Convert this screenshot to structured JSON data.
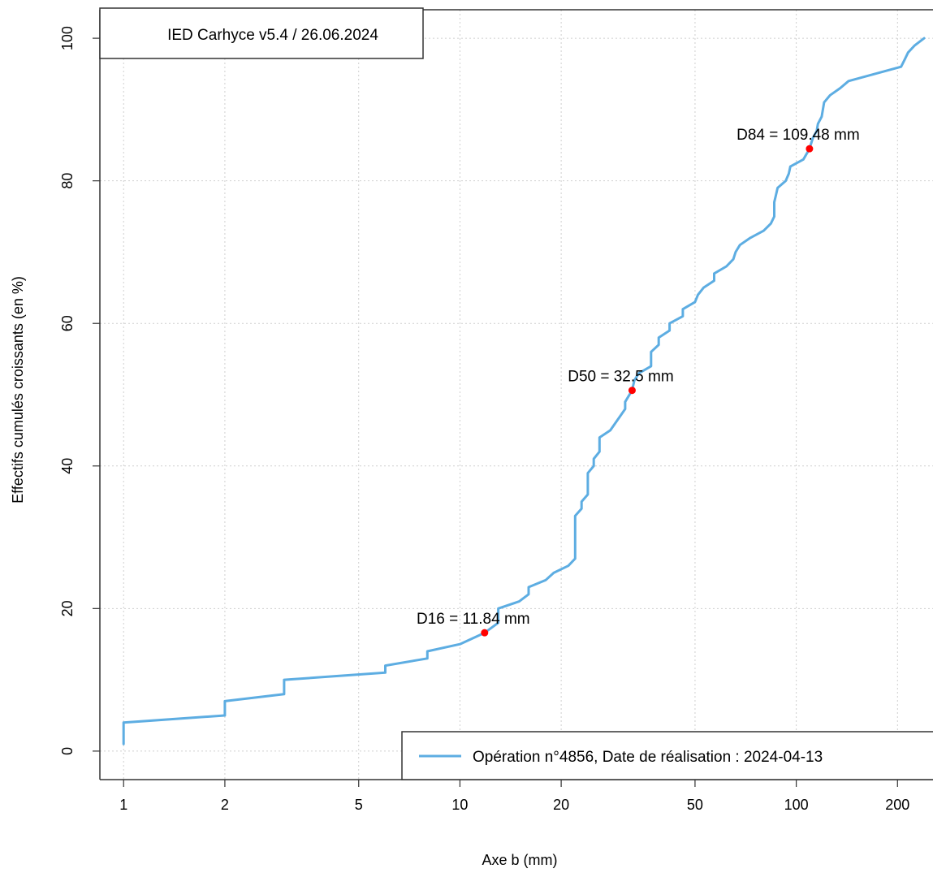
{
  "chart_data": {
    "type": "line",
    "title": "",
    "xlabel": "Axe b (mm)",
    "ylabel": "Effectifs cumulés croissants (en %)",
    "x_scale": "log",
    "xlim": [
      0.85,
      255
    ],
    "ylim": [
      -4,
      104
    ],
    "xticks": [
      1,
      2,
      5,
      10,
      20,
      50,
      100,
      200
    ],
    "yticks": [
      0,
      20,
      40,
      60,
      80,
      100
    ],
    "grid": true,
    "version_label": "IED Carhyce v5.4 / 26.06.2024",
    "legend": {
      "placement": "bottom-right",
      "entries": [
        "Opération n°4856, Date de réalisation : 2024-04-13"
      ]
    },
    "series": [
      {
        "name": "Opération n°4856, Date de réalisation : 2024-04-13",
        "color": "#5DADE2",
        "points": [
          [
            1,
            1
          ],
          [
            1,
            4
          ],
          [
            2,
            5
          ],
          [
            2,
            7
          ],
          [
            3,
            8
          ],
          [
            3,
            10
          ],
          [
            6,
            11
          ],
          [
            6,
            12
          ],
          [
            8,
            13
          ],
          [
            8,
            14
          ],
          [
            10,
            15
          ],
          [
            11.84,
            16.6
          ],
          [
            13,
            18
          ],
          [
            13,
            20
          ],
          [
            15,
            21
          ],
          [
            16,
            22
          ],
          [
            16,
            23
          ],
          [
            18,
            24
          ],
          [
            19,
            25
          ],
          [
            21,
            26
          ],
          [
            22,
            27
          ],
          [
            22,
            33
          ],
          [
            23,
            34
          ],
          [
            23,
            35
          ],
          [
            24,
            36
          ],
          [
            24,
            39
          ],
          [
            25,
            40
          ],
          [
            25,
            41
          ],
          [
            26,
            42
          ],
          [
            26,
            44
          ],
          [
            28,
            45
          ],
          [
            31,
            48
          ],
          [
            31,
            49
          ],
          [
            32.5,
            50.6
          ],
          [
            33,
            52
          ],
          [
            34,
            53
          ],
          [
            37,
            54
          ],
          [
            37,
            56
          ],
          [
            39,
            57
          ],
          [
            39,
            58
          ],
          [
            42,
            59
          ],
          [
            42,
            60
          ],
          [
            46,
            61
          ],
          [
            46,
            62
          ],
          [
            50,
            63
          ],
          [
            51,
            64
          ],
          [
            53,
            65
          ],
          [
            57,
            66
          ],
          [
            57,
            67
          ],
          [
            62,
            68
          ],
          [
            65,
            69
          ],
          [
            66,
            70
          ],
          [
            68,
            71
          ],
          [
            73,
            72
          ],
          [
            80,
            73
          ],
          [
            84,
            74
          ],
          [
            86,
            75
          ],
          [
            86,
            77
          ],
          [
            87,
            78
          ],
          [
            88,
            79
          ],
          [
            93,
            80
          ],
          [
            95,
            81
          ],
          [
            96,
            82
          ],
          [
            105,
            83
          ],
          [
            109.48,
            84.5
          ],
          [
            112,
            86
          ],
          [
            115,
            87
          ],
          [
            116,
            88
          ],
          [
            119,
            89
          ],
          [
            120,
            90
          ],
          [
            121,
            91
          ],
          [
            126,
            92
          ],
          [
            135,
            93
          ],
          [
            143,
            94
          ],
          [
            205,
            96
          ],
          [
            210,
            97
          ],
          [
            215,
            98
          ],
          [
            225,
            99
          ],
          [
            240,
            100
          ]
        ]
      }
    ],
    "annotations": [
      {
        "label": "D16 = 11.84 mm",
        "x": 11.84,
        "y": 16.6
      },
      {
        "label": "D50 = 32.5 mm",
        "x": 32.5,
        "y": 50.6
      },
      {
        "label": "D84 = 109.48 mm",
        "x": 109.48,
        "y": 84.5
      }
    ],
    "marker_color": "#FF0000"
  }
}
